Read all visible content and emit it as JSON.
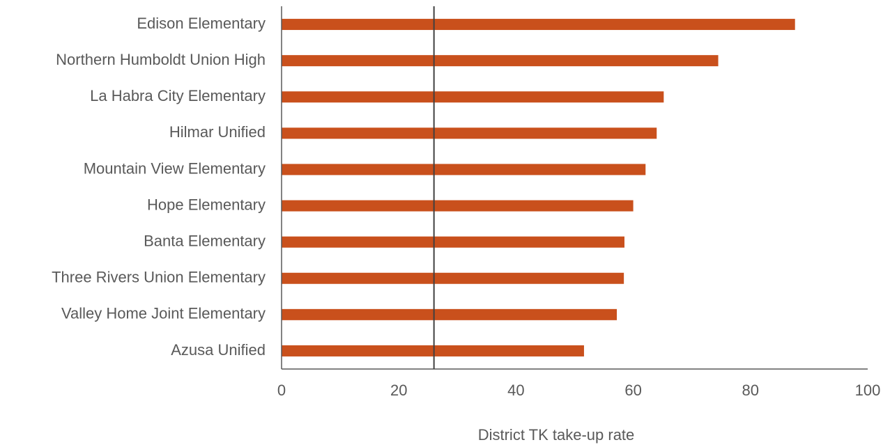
{
  "chart_data": {
    "type": "barh",
    "categories": [
      "Edison Elementary",
      "Northern Humboldt Union High",
      "La Habra City Elementary",
      "Hilmar Unified",
      "Mountain View Elementary",
      "Hope Elementary",
      "Banta Elementary",
      "Three Rivers Union Elementary",
      "Valley Home Joint Elementary",
      "Azusa Unified"
    ],
    "values": [
      87.6,
      74.5,
      65.2,
      64.0,
      62.1,
      60.0,
      58.5,
      58.4,
      57.2,
      51.6
    ],
    "color": "#c9501c",
    "xlabel": "District TK take-up rate",
    "xlim": [
      0,
      100
    ],
    "xticks": [
      0,
      20,
      40,
      60,
      80,
      100
    ],
    "reference_line": 26.0,
    "reference_color": "#404040"
  }
}
